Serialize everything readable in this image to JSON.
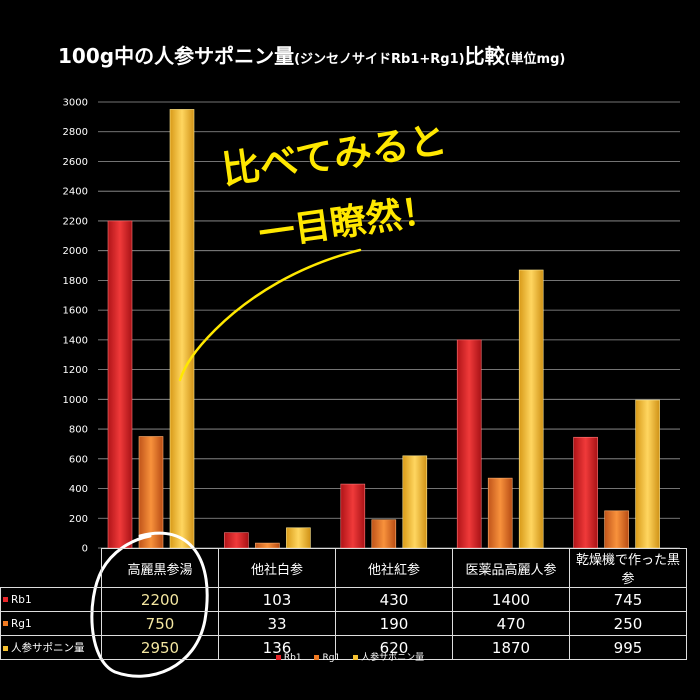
{
  "title": "100g中の人参サポニン量",
  "subtitle": "(ジンセノサイドRb1+Rg1)",
  "title_suffix": "比較",
  "unit_note": "(単位mg)",
  "callout_line1": "比べてみると",
  "callout_line2": "一目瞭然！",
  "colors": {
    "rb1": "#e8262a",
    "rg1": "#f07a22",
    "total": "#f5c030",
    "callout": "#ffe800"
  },
  "chart_data": {
    "type": "bar",
    "categories": [
      "高麗黒参湯",
      "他社白参",
      "他社紅参",
      "医薬品高麗人参",
      "乾燥機で作った黒参"
    ],
    "series": [
      {
        "name": "Rb1",
        "values": [
          2200,
          103,
          430,
          1400,
          745
        ],
        "labels": [
          "2200",
          "103",
          "430",
          "1400",
          "745"
        ]
      },
      {
        "name": "Rg1",
        "values": [
          750,
          33,
          190,
          470,
          250
        ],
        "labels": [
          "750",
          "33",
          "190",
          "470",
          "250"
        ]
      },
      {
        "name": "人参サポニン量",
        "values": [
          2950,
          136,
          620,
          1870,
          995
        ],
        "labels": [
          "2950",
          "136",
          "620",
          "1870",
          "995"
        ]
      }
    ],
    "ylim": [
      0,
      3000
    ],
    "yticks": [
      "0",
      "200",
      "400",
      "600",
      "800",
      "1000",
      "1200",
      "1400",
      "1600",
      "1800",
      "2000",
      "2200",
      "2400",
      "2600",
      "2800",
      "3000"
    ],
    "grid": true,
    "legend_position": "bottom"
  }
}
